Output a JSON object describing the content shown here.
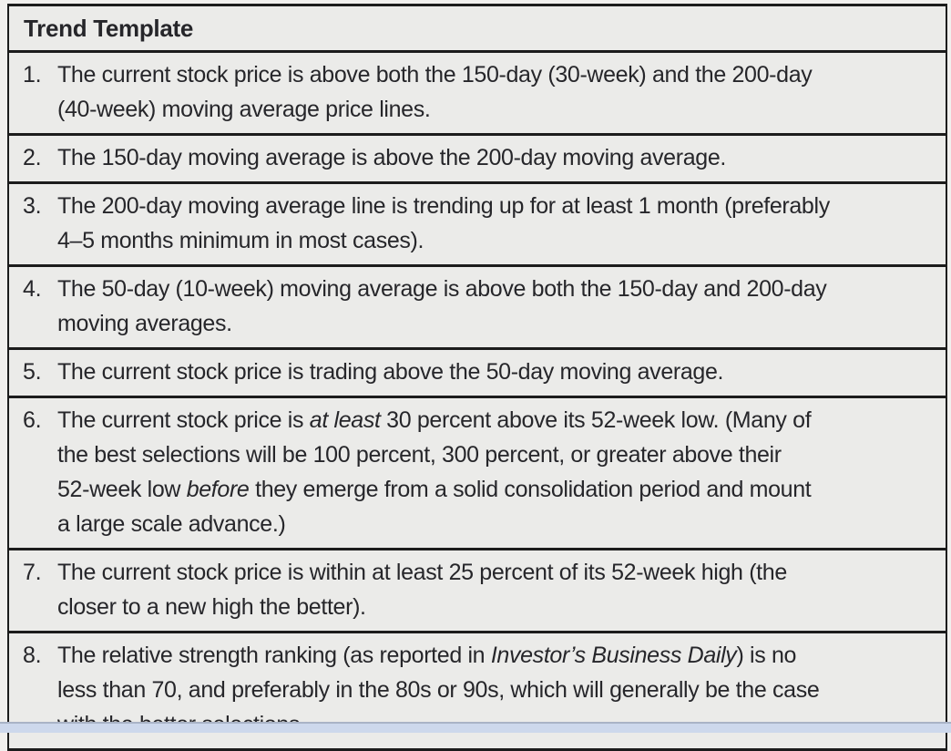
{
  "table": {
    "title": "Trend Template",
    "items": [
      {
        "num": "1.",
        "lines": [
          [
            {
              "t": "The current stock price is above both the 150-day (30-week) and the 200-day"
            }
          ],
          [
            {
              "t": "(40-week) moving average price lines."
            }
          ]
        ]
      },
      {
        "num": "2.",
        "lines": [
          [
            {
              "t": "The 150-day moving average is above the 200-day moving average."
            }
          ]
        ]
      },
      {
        "num": "3.",
        "lines": [
          [
            {
              "t": "The 200-day moving average line is trending up for at least 1 month (preferably"
            }
          ],
          [
            {
              "t": "4–5 months minimum in most cases)."
            }
          ]
        ]
      },
      {
        "num": "4.",
        "lines": [
          [
            {
              "t": "The 50-day (10-week) moving average is above both the 150-day and 200-day"
            }
          ],
          [
            {
              "t": "moving averages."
            }
          ]
        ]
      },
      {
        "num": "5.",
        "lines": [
          [
            {
              "t": "The current stock price is trading above the 50-day moving average."
            }
          ]
        ]
      },
      {
        "num": "6.",
        "lines": [
          [
            {
              "t": "The current stock price is "
            },
            {
              "t": "at least",
              "i": true
            },
            {
              "t": " 30 percent above its 52-week low. (Many of"
            }
          ],
          [
            {
              "t": "the best selections will be 100 percent, 300 percent, or greater above their"
            }
          ],
          [
            {
              "t": "52-week low "
            },
            {
              "t": "before",
              "i": true
            },
            {
              "t": " they emerge from a solid consolidation period and mount"
            }
          ],
          [
            {
              "t": "a large scale advance.)"
            }
          ]
        ]
      },
      {
        "num": "7.",
        "lines": [
          [
            {
              "t": "The current stock price is within at least 25 percent of its 52-week high (the"
            }
          ],
          [
            {
              "t": "closer to a new high the better)."
            }
          ]
        ]
      },
      {
        "num": "8.",
        "lines": [
          [
            {
              "t": "The relative strength ranking (as reported in "
            },
            {
              "t": "Investor’s Business Daily",
              "i": true
            },
            {
              "t": ") is no"
            }
          ],
          [
            {
              "t": "less than 70, and preferably in the 80s or 90s, which will generally be the case"
            }
          ],
          [
            {
              "t": "with the better selections."
            }
          ]
        ]
      }
    ]
  },
  "colors": {
    "cell_background": "#ebebe9",
    "page_background": "#f1f0ee",
    "border": "#1c1c1c",
    "text": "#26262a",
    "bottom_strip": "#cdd8ec"
  }
}
